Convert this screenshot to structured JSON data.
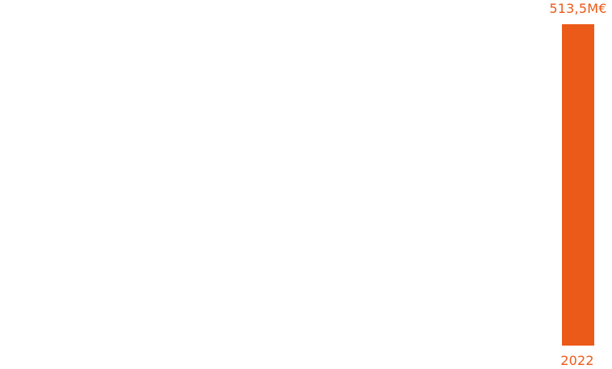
{
  "chart_data": {
    "type": "bar",
    "categories": [
      "2022"
    ],
    "values": [
      513.5
    ],
    "value_labels": [
      "513,5M€"
    ],
    "ylim": [
      0,
      513.5
    ],
    "grid": false,
    "legend": "none",
    "colors": {
      "bar": "#ec5a19",
      "text": "#ec5a19"
    }
  }
}
